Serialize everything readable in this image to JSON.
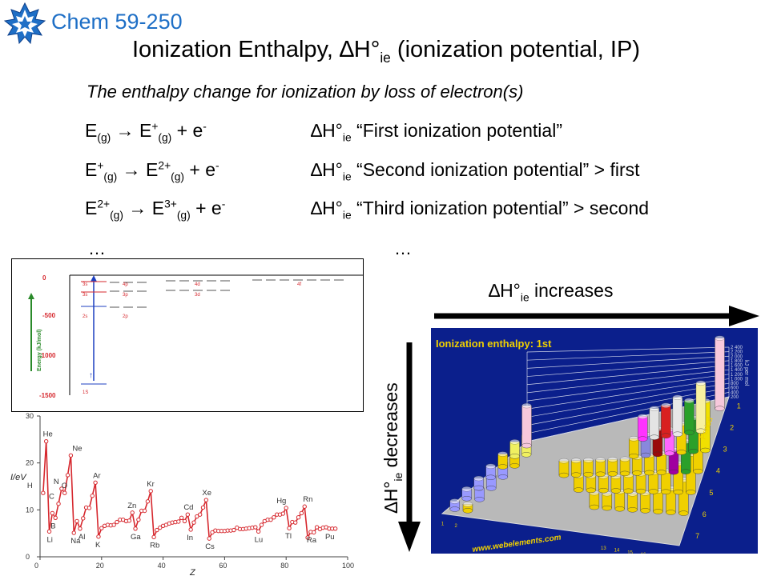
{
  "header": {
    "course": "Chem 59-250",
    "title": "Ionization Enthalpy, ∆H°",
    "title_sub": "ie",
    "title_rest": " (ionization potential, IP)",
    "subtitle": "The enthalpy change for ionization by loss of electron(s)"
  },
  "equations": [
    {
      "lhs": "E",
      "lhs_sub": "(g)",
      "arrow": " → E",
      "prod_sup": "+",
      "prod_sub": "(g)",
      "tail": " + e",
      "tail_sup": "-",
      "dh": "∆H°",
      "dh_sub": "ie",
      "desc": " “First ionization potential”"
    },
    {
      "lhs": "E",
      "lhs_sup": "+",
      "lhs_sub": "(g)",
      "arrow": " → E",
      "prod_sup": "2+",
      "prod_sub": "(g)",
      "tail": " + e",
      "tail_sup": "-",
      "dh": "∆H°",
      "dh_sub": "ie",
      "desc": " “Second ionization potential” > first"
    },
    {
      "lhs": "E",
      "lhs_sup": "2+",
      "lhs_sub": "(g)",
      "arrow": " → E",
      "prod_sup": "3+",
      "prod_sub": "(g)",
      "tail": " + e",
      "tail_sup": "-",
      "dh": "∆H°",
      "dh_sub": "ie",
      "desc": " “Third ionization potential” > second"
    }
  ],
  "ellipsis": "…",
  "trends": {
    "increase_prefix": "∆H°",
    "increase_sub": "ie",
    "increase_rest": " increases",
    "decrease_prefix": "∆H°",
    "decrease_sub": "ie",
    "decrease_rest": " decreases"
  },
  "colors": {
    "course": "#1e6fc6",
    "arrow": "#000000",
    "plot_line": "#d6282e",
    "panel_bg": "#0b1f8c"
  },
  "chart_data": [
    {
      "type": "diagram",
      "ylabel": "Energy (kJ/mol)",
      "yticks": [
        "0",
        "-500",
        "-1000",
        "-1500"
      ],
      "ylim": [
        -1500,
        0
      ],
      "levels": [
        "3s",
        "3s",
        "2s",
        "1S",
        "4p",
        "3p",
        "2p",
        "4d",
        "3d",
        "4f"
      ]
    },
    {
      "type": "line",
      "xlabel": "Z",
      "ylabel": "I/eV",
      "xlim": [
        0,
        100
      ],
      "ylim": [
        0,
        30
      ],
      "xticks": [
        0,
        20,
        40,
        60,
        80,
        100
      ],
      "yticks": [
        0,
        10,
        20,
        30
      ],
      "x": [
        1,
        2,
        3,
        4,
        5,
        6,
        7,
        8,
        9,
        10,
        11,
        12,
        13,
        14,
        15,
        16,
        17,
        18,
        19,
        20,
        21,
        22,
        23,
        24,
        25,
        26,
        27,
        28,
        29,
        30,
        31,
        32,
        33,
        34,
        35,
        36,
        37,
        38,
        39,
        40,
        41,
        42,
        43,
        44,
        45,
        46,
        47,
        48,
        49,
        50,
        51,
        52,
        53,
        54,
        55,
        56,
        57,
        58,
        59,
        60,
        61,
        62,
        63,
        64,
        65,
        66,
        67,
        68,
        69,
        70,
        71,
        72,
        73,
        74,
        75,
        76,
        77,
        78,
        79,
        80,
        81,
        82,
        83,
        84,
        85,
        86,
        87,
        88,
        89,
        90,
        91,
        92,
        93,
        94,
        95,
        96
      ],
      "y": [
        13.6,
        24.6,
        5.4,
        9.3,
        8.3,
        11.3,
        14.5,
        13.6,
        17.4,
        21.6,
        5.1,
        7.6,
        6.0,
        8.2,
        10.5,
        10.4,
        13.0,
        15.8,
        4.3,
        6.1,
        6.6,
        6.8,
        6.7,
        6.8,
        7.4,
        7.9,
        7.9,
        7.6,
        7.7,
        9.4,
        6.0,
        7.9,
        9.8,
        9.8,
        11.8,
        14.0,
        4.2,
        5.7,
        6.2,
        6.6,
        6.8,
        7.1,
        7.3,
        7.4,
        7.5,
        8.3,
        7.6,
        9.0,
        5.8,
        7.3,
        8.6,
        9.0,
        10.5,
        12.1,
        3.9,
        5.2,
        5.6,
        5.5,
        5.5,
        5.5,
        5.6,
        5.6,
        5.7,
        6.2,
        5.9,
        5.9,
        6.0,
        6.1,
        6.2,
        6.3,
        5.4,
        6.8,
        7.6,
        7.9,
        7.9,
        8.4,
        9.0,
        9.0,
        9.2,
        10.4,
        6.1,
        7.4,
        7.3,
        8.4,
        9.3,
        10.7,
        4.1,
        5.3,
        5.2,
        6.3,
        5.9,
        6.2,
        6.3,
        6.0,
        6.0,
        6.0
      ],
      "annotations": [
        {
          "label": "H",
          "x": 1
        },
        {
          "label": "He",
          "x": 2
        },
        {
          "label": "Li",
          "x": 3
        },
        {
          "label": "B",
          "x": 5
        },
        {
          "label": "C",
          "x": 6
        },
        {
          "label": "N",
          "x": 7
        },
        {
          "label": "O",
          "x": 8
        },
        {
          "label": "Ne",
          "x": 10
        },
        {
          "label": "Na",
          "x": 11
        },
        {
          "label": "Al",
          "x": 13
        },
        {
          "label": "Ar",
          "x": 18
        },
        {
          "label": "K",
          "x": 19
        },
        {
          "label": "Zn",
          "x": 30
        },
        {
          "label": "Ga",
          "x": 31
        },
        {
          "label": "Kr",
          "x": 36
        },
        {
          "label": "Rb",
          "x": 37
        },
        {
          "label": "Cd",
          "x": 48
        },
        {
          "label": "In",
          "x": 49
        },
        {
          "label": "Xe",
          "x": 54
        },
        {
          "label": "Cs",
          "x": 55
        },
        {
          "label": "Lu",
          "x": 71
        },
        {
          "label": "Hg",
          "x": 80
        },
        {
          "label": "Tl",
          "x": 81
        },
        {
          "label": "Rn",
          "x": 86
        },
        {
          "label": "Ra",
          "x": 88
        },
        {
          "label": "Pu",
          "x": 94
        }
      ]
    },
    {
      "type": "bar",
      "title": "Ionization enthalpy: 1st",
      "ylabel": "kJ per mol",
      "ylim": [
        0,
        2400
      ],
      "yticks": [
        "2 400",
        "2 200",
        "2 000",
        "1 800",
        "1 600",
        "1 400",
        "1 200",
        "1 000",
        "800",
        "600",
        "400",
        "200"
      ],
      "xlabel": "Period",
      "periods": [
        "1",
        "2",
        "3",
        "4",
        "5",
        "6",
        "7"
      ],
      "groups": [
        "1",
        "2",
        "13",
        "14",
        "15",
        "16",
        "17",
        "18"
      ],
      "credit": "www.webelements.com"
    }
  ]
}
